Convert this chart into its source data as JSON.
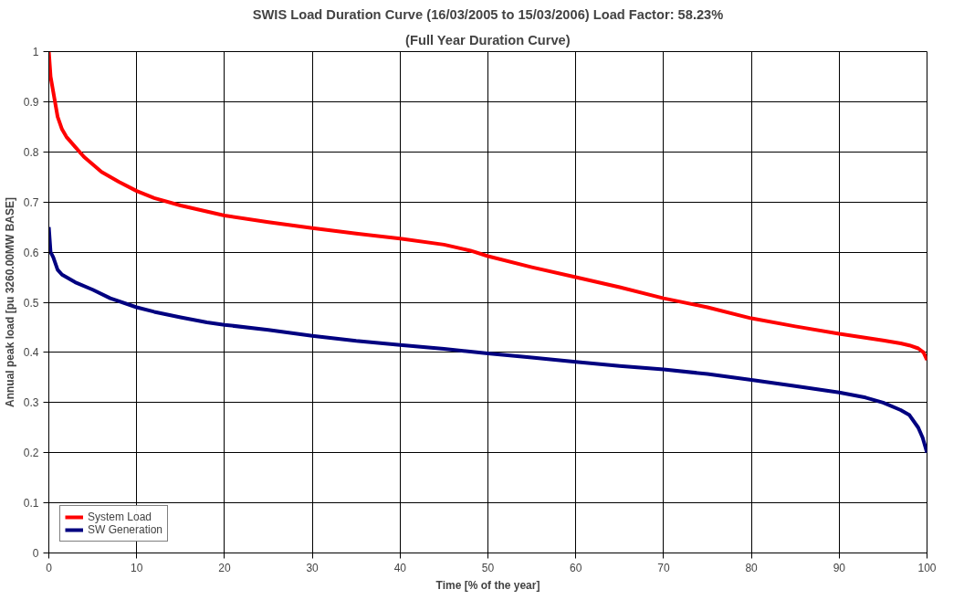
{
  "chart_data": {
    "type": "line",
    "title": "SWIS Load Duration Curve (16/03/2005 to 15/03/2006) Load Factor: 58.23%",
    "subtitle": "(Full Year Duration Curve)",
    "xlabel": "Time [% of the year]",
    "ylabel": "Annual peak load [pu 3260.00MW BASE]",
    "xlim": [
      0,
      100
    ],
    "xticks": [
      0,
      10,
      20,
      30,
      40,
      50,
      60,
      70,
      80,
      90,
      100
    ],
    "ylim": [
      0,
      1
    ],
    "yticks": [
      0,
      0.1,
      0.2,
      0.3,
      0.4,
      0.5,
      0.6,
      0.7,
      0.8,
      0.9,
      1
    ],
    "grid": true,
    "legend": "bottom left",
    "marker": "none",
    "line_style": "solid",
    "series": [
      {
        "name": "System Load",
        "color": "#ff0000",
        "x": [
          0,
          0.2,
          0.5,
          1,
          1.5,
          2,
          3,
          4,
          5,
          6,
          8,
          10,
          12,
          15,
          20,
          25,
          30,
          35,
          40,
          45,
          48,
          50,
          55,
          60,
          65,
          70,
          75,
          80,
          85,
          90,
          95,
          97,
          98,
          99,
          99.6,
          100
        ],
        "values": [
          1.0,
          0.95,
          0.92,
          0.87,
          0.845,
          0.83,
          0.81,
          0.79,
          0.775,
          0.76,
          0.74,
          0.722,
          0.708,
          0.693,
          0.673,
          0.66,
          0.648,
          0.637,
          0.627,
          0.615,
          0.603,
          0.592,
          0.57,
          0.55,
          0.53,
          0.508,
          0.49,
          0.468,
          0.452,
          0.437,
          0.424,
          0.418,
          0.414,
          0.408,
          0.4,
          0.385
        ]
      },
      {
        "name": "SW Generation",
        "color": "#000080",
        "x": [
          0,
          0.2,
          0.5,
          1,
          1.5,
          3,
          5,
          7,
          10,
          12,
          15,
          18,
          20,
          25,
          30,
          35,
          40,
          45,
          50,
          55,
          60,
          65,
          70,
          75,
          80,
          85,
          90,
          93,
          95,
          97,
          98,
          99,
          99.5,
          100
        ],
        "values": [
          0.65,
          0.6,
          0.59,
          0.565,
          0.555,
          0.54,
          0.525,
          0.508,
          0.49,
          0.481,
          0.47,
          0.46,
          0.455,
          0.445,
          0.433,
          0.423,
          0.415,
          0.407,
          0.398,
          0.39,
          0.381,
          0.373,
          0.366,
          0.357,
          0.345,
          0.333,
          0.32,
          0.31,
          0.3,
          0.285,
          0.275,
          0.25,
          0.23,
          0.2
        ]
      }
    ]
  }
}
